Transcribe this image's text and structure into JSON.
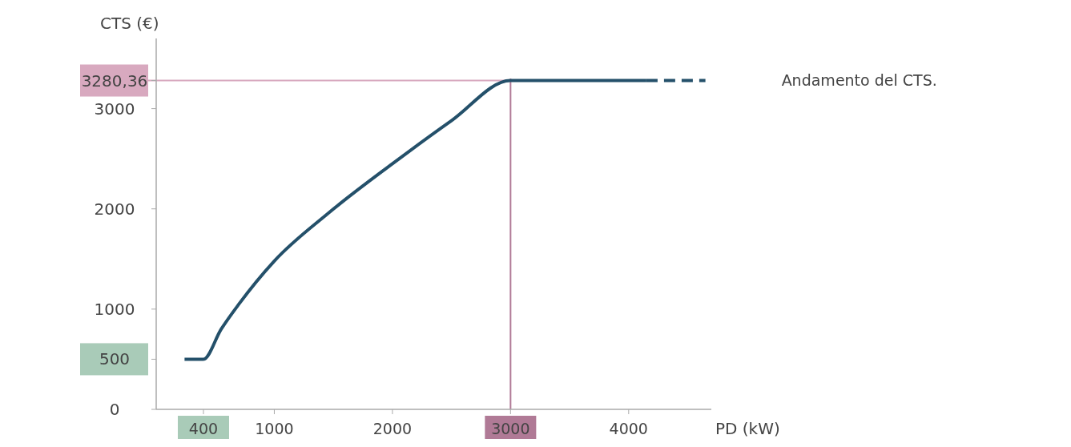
{
  "chart_data": {
    "type": "line",
    "xlabel": "PD (kW)",
    "ylabel": "CTS (€)",
    "xlim": [
      0,
      4700
    ],
    "ylim": [
      0,
      3700
    ],
    "xticks": [
      400,
      1000,
      2000,
      3000,
      4000
    ],
    "yticks": [
      0,
      500,
      1000,
      2000,
      3000,
      {
        "value": 3280.36,
        "label": "3280,36"
      }
    ],
    "ref_lines": [
      {
        "axis": "x",
        "value": 3000,
        "color": "#b07a96"
      },
      {
        "axis": "y",
        "value": 3280.36,
        "color": "#d8a9bf"
      }
    ],
    "series": [
      {
        "name": "Andamento del CTS.",
        "color": "#24506a",
        "line_style": "solid",
        "x": [
          240,
          400,
          550,
          700,
          1000,
          1450,
          2000,
          2500,
          3000,
          4150
        ],
        "values": [
          500,
          500,
          800,
          1050,
          1480,
          1950,
          2450,
          2880,
          3280.36,
          3280.36
        ]
      },
      {
        "color": "#24506a",
        "line_style": "dashed",
        "x": [
          4150,
          4650
        ],
        "values": [
          3280.36,
          3280.36
        ]
      }
    ],
    "legend": false,
    "grid": false,
    "marker": "none"
  }
}
